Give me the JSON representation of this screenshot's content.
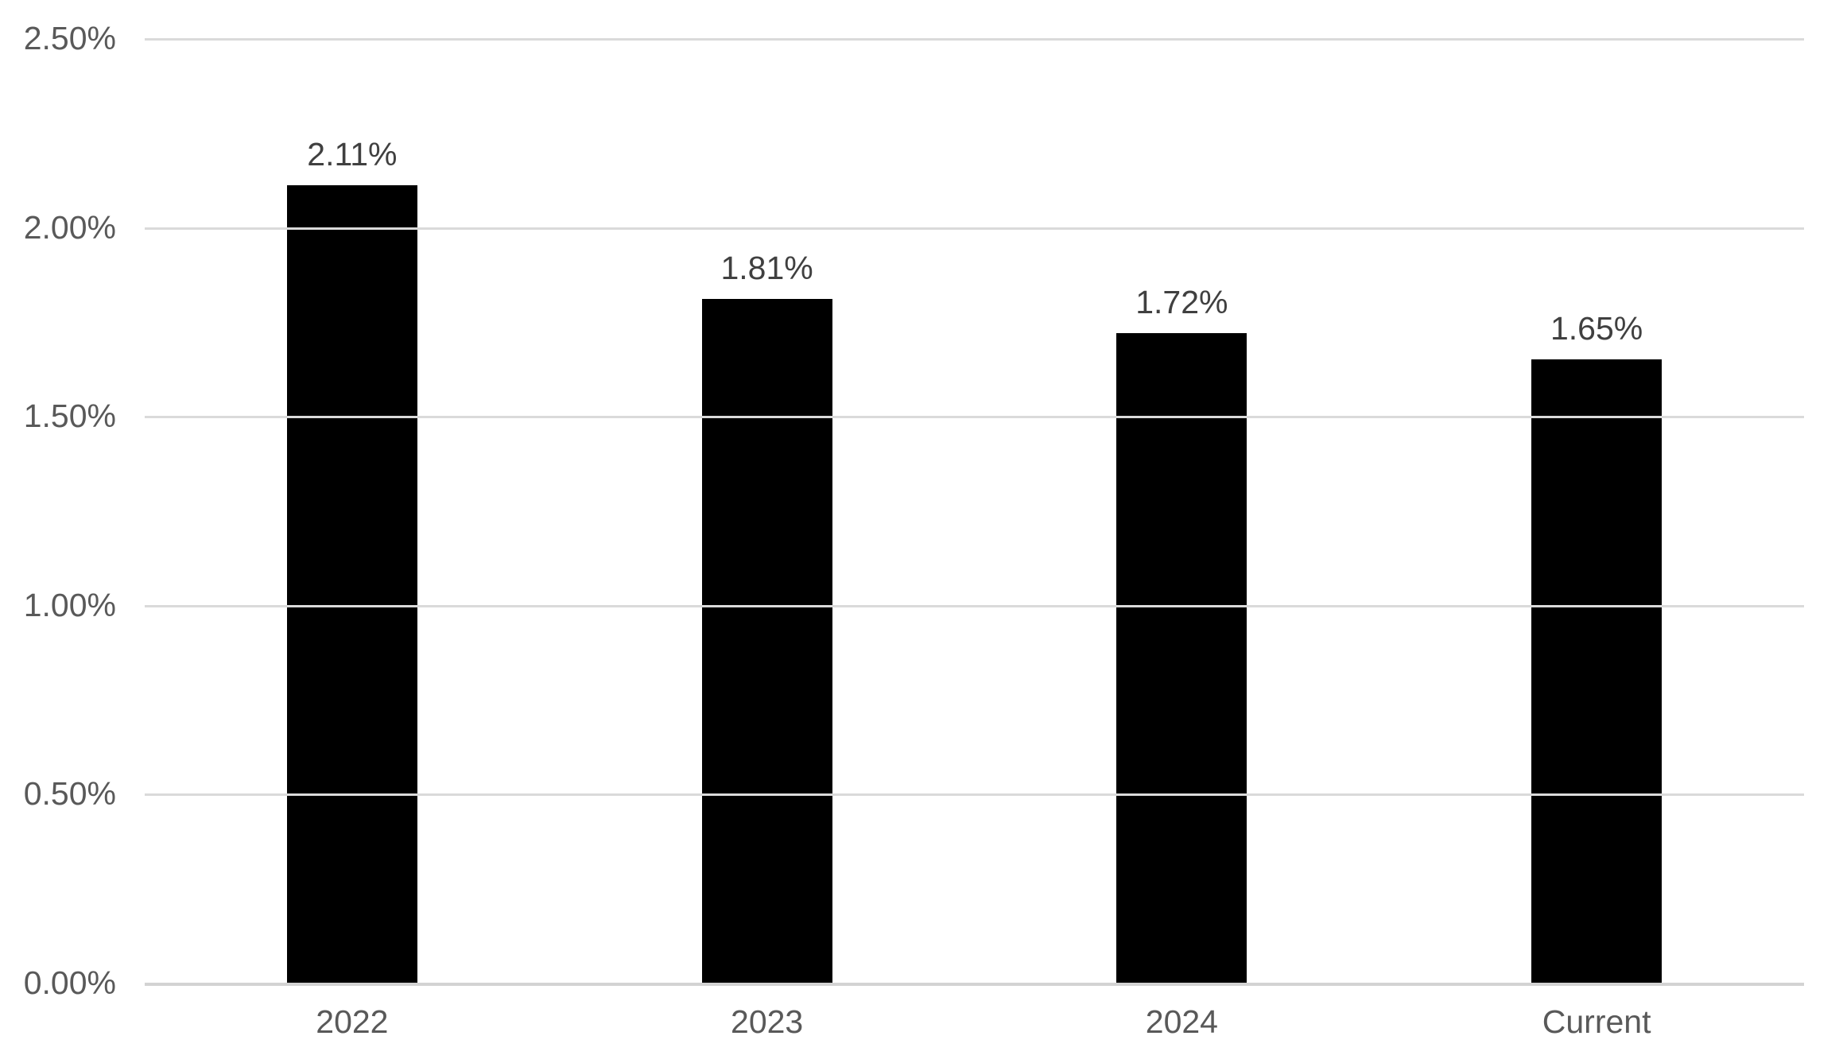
{
  "chart_data": {
    "type": "bar",
    "title": "",
    "xlabel": "",
    "ylabel": "",
    "categories": [
      "2022",
      "2023",
      "2024",
      "Current"
    ],
    "values": [
      2.11,
      1.81,
      1.72,
      1.65
    ],
    "data_labels": [
      "2.11%",
      "1.81%",
      "1.72%",
      "1.65%"
    ],
    "y_ticks": [
      {
        "value": 0.0,
        "label": "0.00%"
      },
      {
        "value": 0.5,
        "label": "0.50%"
      },
      {
        "value": 1.0,
        "label": "1.00%"
      },
      {
        "value": 1.5,
        "label": "1.50%"
      },
      {
        "value": 2.0,
        "label": "2.00%"
      },
      {
        "value": 2.5,
        "label": "2.50%"
      }
    ],
    "ylim": [
      0,
      2.5
    ],
    "grid": "horizontal",
    "legend": "none",
    "colors": {
      "bar": "#000000",
      "gridline": "#dadada",
      "axis_line": "#d3d3d3",
      "axis_label_text": "#595959",
      "data_label_text": "#404040",
      "background": "#ffffff"
    }
  }
}
